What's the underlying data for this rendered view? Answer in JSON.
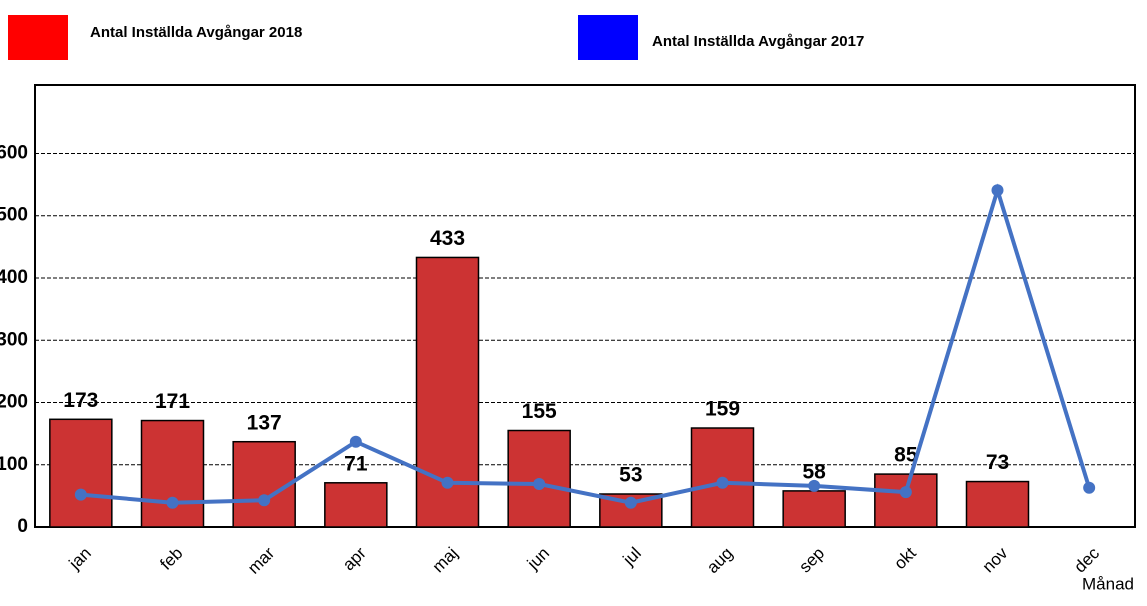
{
  "chart_data": {
    "type": "bar",
    "x_label": "Månad",
    "categories": [
      "jan",
      "feb",
      "mar",
      "apr",
      "maj",
      "jun",
      "jul",
      "aug",
      "sep",
      "okt",
      "nov",
      "dec"
    ],
    "series": [
      {
        "name": "Antal Inställda Avgångar 2018",
        "type": "bar",
        "color": "#cc3333",
        "legend_color": "#ff0000",
        "values": [
          173,
          171,
          137,
          71,
          433,
          155,
          53,
          159,
          58,
          85,
          73,
          null
        ]
      },
      {
        "name": "Antal Inställda Avgångar 2017",
        "type": "line",
        "color": "#4472c4",
        "legend_color": "#0000ff",
        "values": [
          52,
          39,
          43,
          137,
          71,
          69,
          39,
          71,
          66,
          56,
          541,
          63
        ]
      }
    ],
    "ylim": [
      0,
      710
    ],
    "yticks": [
      0,
      100,
      200,
      300,
      400,
      500,
      600
    ],
    "grid": true
  }
}
